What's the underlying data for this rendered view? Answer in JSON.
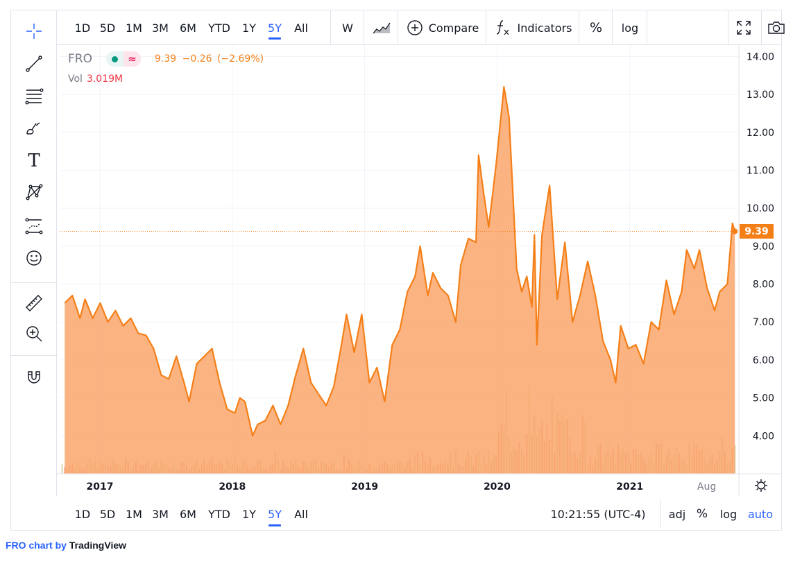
{
  "symbol": {
    "ticker": "FRO",
    "last": "9.39",
    "change": "−0.26",
    "change_pct": "(−2.69%)",
    "vol_label": "Vol",
    "vol_value": "3.019M",
    "price_tag": "9.39"
  },
  "toolbar": {
    "ranges": [
      "1D",
      "5D",
      "1M",
      "3M",
      "6M",
      "YTD",
      "1Y",
      "5Y",
      "All"
    ],
    "active_range": "5Y",
    "interval": "W",
    "compare_label": "Compare",
    "indicators_label": "Indicators",
    "percent_label": "%",
    "log_label": "log"
  },
  "bottom_bar": {
    "ranges": [
      "1D",
      "5D",
      "1M",
      "3M",
      "6M",
      "YTD",
      "1Y",
      "5Y",
      "All"
    ],
    "active_range": "5Y",
    "clock": "10:21:55 (UTC-4)",
    "adj_label": "adj",
    "percent_label": "%",
    "log_label": "log",
    "auto_label": "auto"
  },
  "left_tools": [
    "crosshair-icon",
    "trend-line-icon",
    "fib-retracement-icon",
    "brush-icon",
    "text-tool-icon",
    "pattern-icon",
    "forecast-icon",
    "emoji-icon",
    "ruler-icon",
    "zoom-in-icon",
    "magnet-icon"
  ],
  "credit": {
    "prefix": "FRO chart by ",
    "brand": "TradingView"
  },
  "colors": {
    "accent": "#2962ff",
    "series_line": "#f57f17",
    "series_fill": "#f9a66b",
    "grid": "#f0f3fa",
    "text": "#131722",
    "muted": "#787b86",
    "down": "#f23645",
    "volume_up": "#d8d2a6",
    "volume_down": "#f1a090"
  },
  "chart_data": {
    "type": "area",
    "title": "FRO",
    "x_axis_labels": [
      {
        "date": "2017-01-01",
        "label": "2017"
      },
      {
        "date": "2018-01-01",
        "label": "2018"
      },
      {
        "date": "2019-01-01",
        "label": "2019"
      },
      {
        "date": "2020-01-01",
        "label": "2020"
      },
      {
        "date": "2021-01-01",
        "label": "2021"
      },
      {
        "date": "2021-08-01",
        "label": "Aug"
      }
    ],
    "y_ticks": [
      "4.00",
      "5.00",
      "6.00",
      "7.00",
      "8.00",
      "9.00",
      "10.00",
      "11.00",
      "12.00",
      "13.00",
      "14.00"
    ],
    "ylim": [
      3.0,
      14.3
    ],
    "xlim": [
      "2016-09-12",
      "2021-10-25"
    ],
    "last_value": 9.39,
    "series": [
      {
        "name": "FRO",
        "points": [
          [
            "2016-09-26",
            7.5
          ],
          [
            "2016-10-17",
            7.7
          ],
          [
            "2016-11-07",
            7.1
          ],
          [
            "2016-11-21",
            7.6
          ],
          [
            "2016-12-12",
            7.1
          ],
          [
            "2017-01-02",
            7.5
          ],
          [
            "2017-01-23",
            7.0
          ],
          [
            "2017-02-13",
            7.3
          ],
          [
            "2017-03-06",
            6.9
          ],
          [
            "2017-03-27",
            7.1
          ],
          [
            "2017-04-17",
            6.7
          ],
          [
            "2017-05-08",
            6.65
          ],
          [
            "2017-05-29",
            6.3
          ],
          [
            "2017-06-19",
            5.6
          ],
          [
            "2017-07-10",
            5.5
          ],
          [
            "2017-07-31",
            6.1
          ],
          [
            "2017-08-21",
            5.4
          ],
          [
            "2017-09-04",
            4.9
          ],
          [
            "2017-09-25",
            5.9
          ],
          [
            "2017-10-16",
            6.1
          ],
          [
            "2017-11-06",
            6.3
          ],
          [
            "2017-11-27",
            5.4
          ],
          [
            "2017-12-18",
            4.7
          ],
          [
            "2018-01-08",
            4.6
          ],
          [
            "2018-01-22",
            5.0
          ],
          [
            "2018-02-05",
            4.9
          ],
          [
            "2018-02-26",
            4.0
          ],
          [
            "2018-03-12",
            4.3
          ],
          [
            "2018-04-02",
            4.4
          ],
          [
            "2018-04-23",
            4.8
          ],
          [
            "2018-05-14",
            4.3
          ],
          [
            "2018-06-04",
            4.8
          ],
          [
            "2018-06-25",
            5.6
          ],
          [
            "2018-07-16",
            6.3
          ],
          [
            "2018-08-06",
            5.4
          ],
          [
            "2018-08-27",
            5.1
          ],
          [
            "2018-09-17",
            4.8
          ],
          [
            "2018-10-08",
            5.3
          ],
          [
            "2018-10-29",
            6.4
          ],
          [
            "2018-11-12",
            7.2
          ],
          [
            "2018-12-03",
            6.2
          ],
          [
            "2018-12-24",
            7.2
          ],
          [
            "2019-01-14",
            5.4
          ],
          [
            "2019-02-04",
            5.8
          ],
          [
            "2019-02-25",
            4.9
          ],
          [
            "2019-03-18",
            6.4
          ],
          [
            "2019-04-08",
            6.8
          ],
          [
            "2019-04-29",
            7.8
          ],
          [
            "2019-05-20",
            8.2
          ],
          [
            "2019-06-03",
            9.0
          ],
          [
            "2019-06-24",
            7.7
          ],
          [
            "2019-07-08",
            8.3
          ],
          [
            "2019-07-29",
            7.9
          ],
          [
            "2019-08-19",
            7.7
          ],
          [
            "2019-09-09",
            7.0
          ],
          [
            "2019-09-23",
            8.5
          ],
          [
            "2019-10-14",
            9.2
          ],
          [
            "2019-11-04",
            9.1
          ],
          [
            "2019-11-11",
            11.4
          ],
          [
            "2019-11-25",
            10.4
          ],
          [
            "2019-12-09",
            9.5
          ],
          [
            "2019-12-30",
            11.2
          ],
          [
            "2020-01-20",
            13.2
          ],
          [
            "2020-02-03",
            12.4
          ],
          [
            "2020-02-24",
            8.4
          ],
          [
            "2020-03-09",
            7.8
          ],
          [
            "2020-03-23",
            8.2
          ],
          [
            "2020-04-06",
            7.4
          ],
          [
            "2020-04-13",
            9.3
          ],
          [
            "2020-04-20",
            6.4
          ],
          [
            "2020-05-04",
            9.3
          ],
          [
            "2020-05-25",
            10.6
          ],
          [
            "2020-06-15",
            7.6
          ],
          [
            "2020-07-06",
            9.1
          ],
          [
            "2020-07-27",
            7.0
          ],
          [
            "2020-08-17",
            7.7
          ],
          [
            "2020-09-07",
            8.6
          ],
          [
            "2020-09-28",
            7.7
          ],
          [
            "2020-10-19",
            6.5
          ],
          [
            "2020-11-09",
            6.0
          ],
          [
            "2020-11-23",
            5.4
          ],
          [
            "2020-12-07",
            6.9
          ],
          [
            "2020-12-28",
            6.3
          ],
          [
            "2021-01-18",
            6.4
          ],
          [
            "2021-02-08",
            5.9
          ],
          [
            "2021-03-01",
            7.0
          ],
          [
            "2021-03-22",
            6.8
          ],
          [
            "2021-04-12",
            8.1
          ],
          [
            "2021-05-03",
            7.2
          ],
          [
            "2021-05-24",
            7.8
          ],
          [
            "2021-06-07",
            8.9
          ],
          [
            "2021-06-28",
            8.4
          ],
          [
            "2021-07-12",
            8.9
          ],
          [
            "2021-08-02",
            7.9
          ],
          [
            "2021-08-23",
            7.3
          ],
          [
            "2021-09-06",
            7.8
          ],
          [
            "2021-09-27",
            8.0
          ],
          [
            "2021-10-11",
            9.6
          ],
          [
            "2021-10-18",
            9.39
          ]
        ]
      }
    ],
    "volume_note": "Volume bars in lower pane, scaled relative to max",
    "volume": [
      {
        "start": "2016-09-19",
        "end": "2019-04-29",
        "level": "low"
      },
      {
        "start": "2019-05-06",
        "end": "2019-12-30",
        "level": "low-medium"
      },
      {
        "start": "2020-01-06",
        "end": "2020-08-31",
        "level": "high"
      },
      {
        "start": "2020-09-07",
        "end": "2021-10-18",
        "level": "medium"
      }
    ]
  }
}
